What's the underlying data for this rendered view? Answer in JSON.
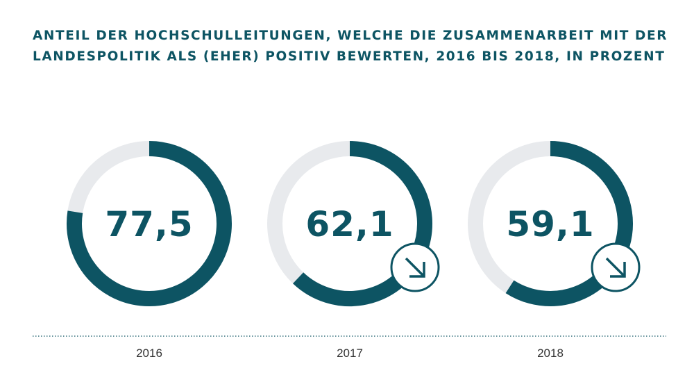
{
  "chart_data": {
    "type": "donut",
    "title_lines": [
      "ANTEIL DER HOCHSCHULLEITUNGEN, WELCHE DIE ZUSAMMENARBEIT MIT DER",
      "LANDESPOLITIK ALS (EHER) POSITIV BEWERTEN, 2016 BIS 2018, IN PROZENT"
    ],
    "categories": [
      "2016",
      "2017",
      "2018"
    ],
    "values": [
      77.5,
      62.1,
      59.1
    ],
    "value_labels": [
      "77,5",
      "62,1",
      "59,1"
    ],
    "max": 100,
    "trend_icons": [
      null,
      "arrow-down-right-icon",
      "arrow-down-right-icon"
    ],
    "colors": {
      "fill": "#0d5463",
      "track": "#e8eaed",
      "text": "#0d5463",
      "axis_label": "#333333"
    }
  }
}
